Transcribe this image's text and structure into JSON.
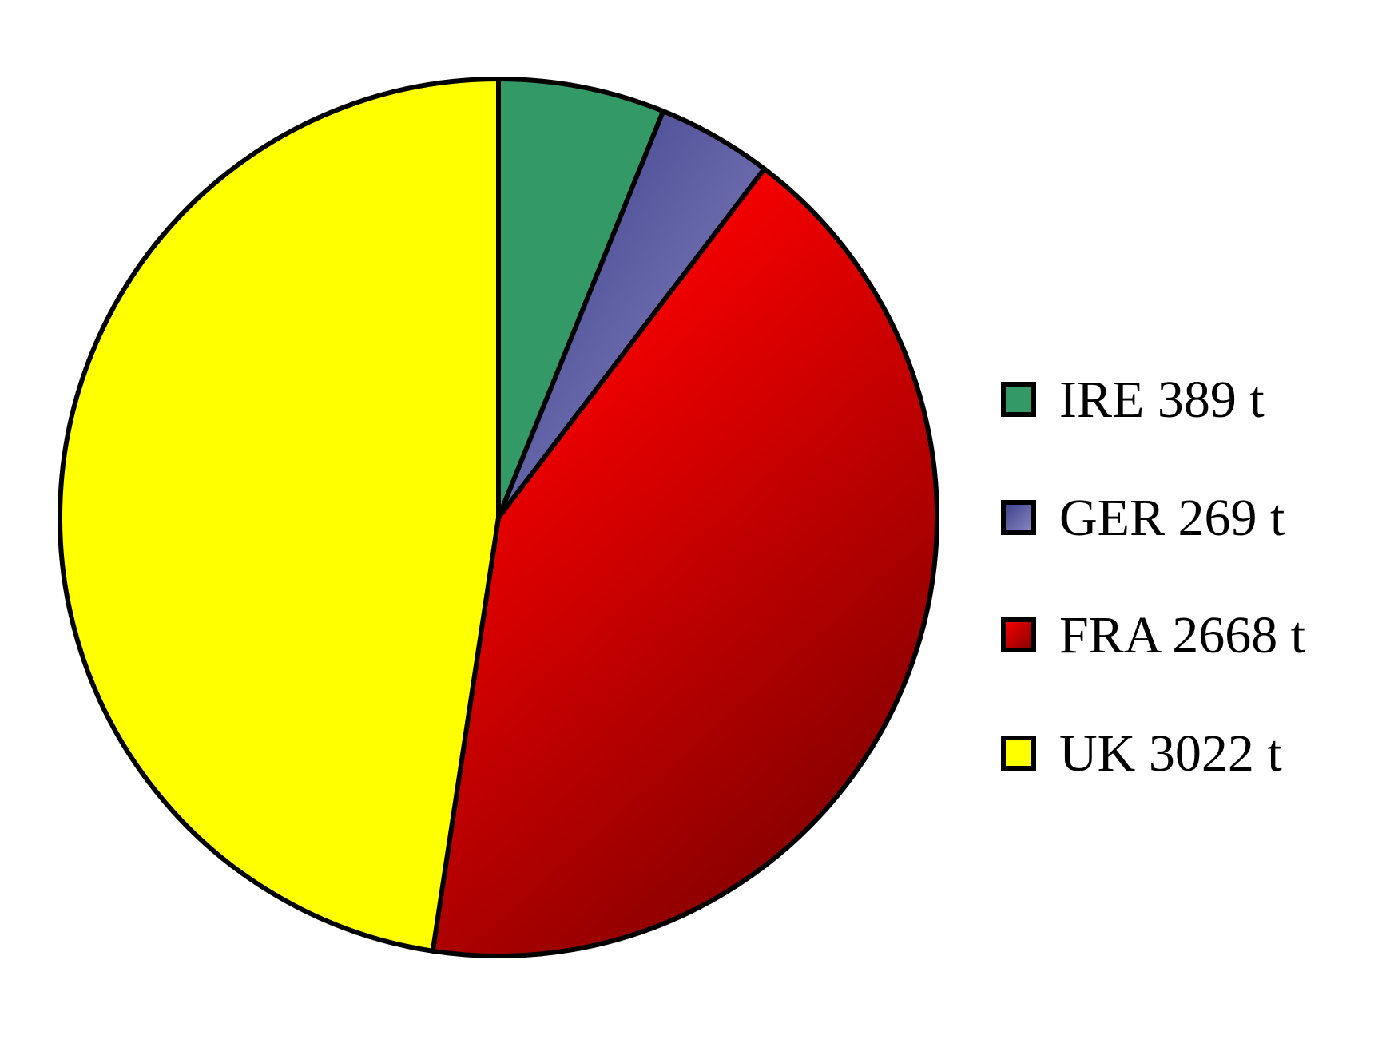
{
  "chart_data": {
    "type": "pie",
    "start_angle": "12 o'clock",
    "direction": "clockwise",
    "legend_position": "right",
    "slices": [
      {
        "label": "IRE 389 t",
        "value": 389,
        "color": "#339966"
      },
      {
        "label": "GER 269 t",
        "value": 269,
        "color": "#5d5d9f"
      },
      {
        "label": "FRA 2668 t",
        "value": 2668,
        "color": "#e00000"
      },
      {
        "label": "UK 3022 t",
        "value": 3022,
        "color": "#ffff00"
      }
    ]
  }
}
